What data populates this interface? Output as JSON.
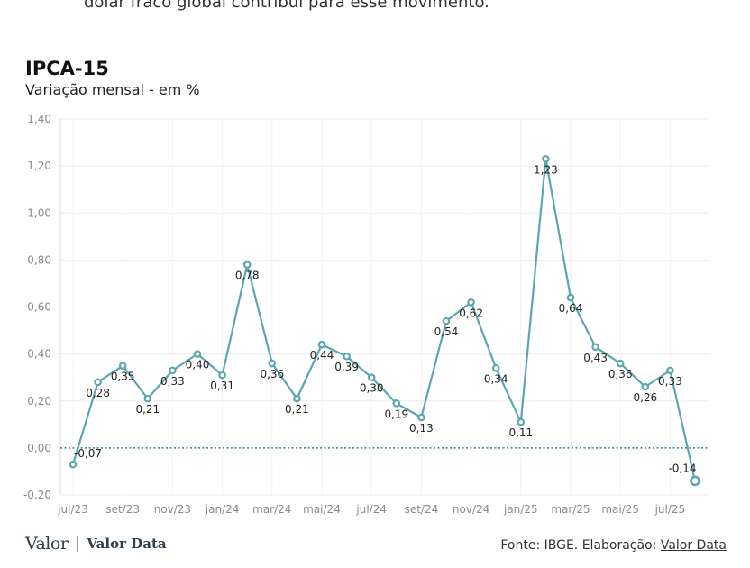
{
  "intro_text": "dólar fraco global contribui para esse movimento.",
  "header": {
    "title": "IPCA-15",
    "subtitle": "Variação mensal - em %"
  },
  "footer": {
    "logo_valor": "Valor",
    "logo_data": "Valor Data",
    "source_label": "Fonte: IBGE. Elaboração: ",
    "source_link": "Valor Data"
  },
  "colors": {
    "line": "#5ba7b0",
    "zero_line": "#2f7fa0",
    "grid": "#ececec"
  },
  "chart_data": {
    "type": "line",
    "title": "IPCA-15",
    "subtitle": "Variação mensal - em %",
    "xlabel": "",
    "ylabel": "",
    "ylim": [
      -0.2,
      1.4
    ],
    "yticks": [
      -0.2,
      0.0,
      0.2,
      0.4,
      0.6,
      0.8,
      1.0,
      1.2,
      1.4
    ],
    "ytick_labels": [
      "-0,20",
      "0,00",
      "0,20",
      "0,40",
      "0,60",
      "0,80",
      "1,00",
      "1,20",
      "1,40"
    ],
    "x": [
      "jul/23",
      "ago/23",
      "set/23",
      "out/23",
      "nov/23",
      "dez/23",
      "jan/24",
      "fev/24",
      "mar/24",
      "abr/24",
      "mai/24",
      "jun/24",
      "jul/24",
      "ago/24",
      "set/24",
      "out/24",
      "nov/24",
      "dez/24",
      "jan/25",
      "fev/25",
      "mar/25",
      "abr/25",
      "mai/25",
      "jun/25",
      "jul/25",
      "ago/25"
    ],
    "xtick_labels": [
      {
        "index": 0,
        "label": "jul/23"
      },
      {
        "index": 2,
        "label": "set/23"
      },
      {
        "index": 4,
        "label": "nov/23"
      },
      {
        "index": 6,
        "label": "jan/24"
      },
      {
        "index": 8,
        "label": "mar/24"
      },
      {
        "index": 10,
        "label": "mai/24"
      },
      {
        "index": 12,
        "label": "jul/24"
      },
      {
        "index": 14,
        "label": "set/24"
      },
      {
        "index": 16,
        "label": "nov/24"
      },
      {
        "index": 18,
        "label": "jan/25"
      },
      {
        "index": 20,
        "label": "mar/25"
      },
      {
        "index": 22,
        "label": "mai/25"
      },
      {
        "index": 24,
        "label": "jul/25"
      }
    ],
    "values": [
      -0.07,
      0.28,
      0.35,
      0.21,
      0.33,
      0.4,
      0.31,
      0.78,
      0.36,
      0.21,
      0.44,
      0.39,
      0.3,
      0.19,
      0.13,
      0.54,
      0.62,
      0.34,
      0.11,
      1.23,
      0.64,
      0.43,
      0.36,
      0.26,
      0.33,
      -0.14
    ],
    "value_labels": [
      "-0,07",
      "0,28",
      "0,35",
      "0,21",
      "0,33",
      "0,40",
      "0,31",
      "0,78",
      "0,36",
      "0,21",
      "0,44",
      "0,39",
      "0,30",
      "0,19",
      "0,13",
      "0,54",
      "0,62",
      "0,34",
      "0,11",
      "1,23",
      "0,64",
      "0,43",
      "0,36",
      "0,26",
      "0,33",
      "-0,14"
    ],
    "label_position": [
      "right",
      "below",
      "below",
      "below",
      "below",
      "below",
      "below",
      "below",
      "below",
      "below",
      "below",
      "below",
      "below",
      "below",
      "below",
      "below",
      "below",
      "below",
      "below",
      "below",
      "below",
      "below",
      "below",
      "below",
      "below",
      "above"
    ],
    "grid": true,
    "zero_line": "dotted"
  }
}
